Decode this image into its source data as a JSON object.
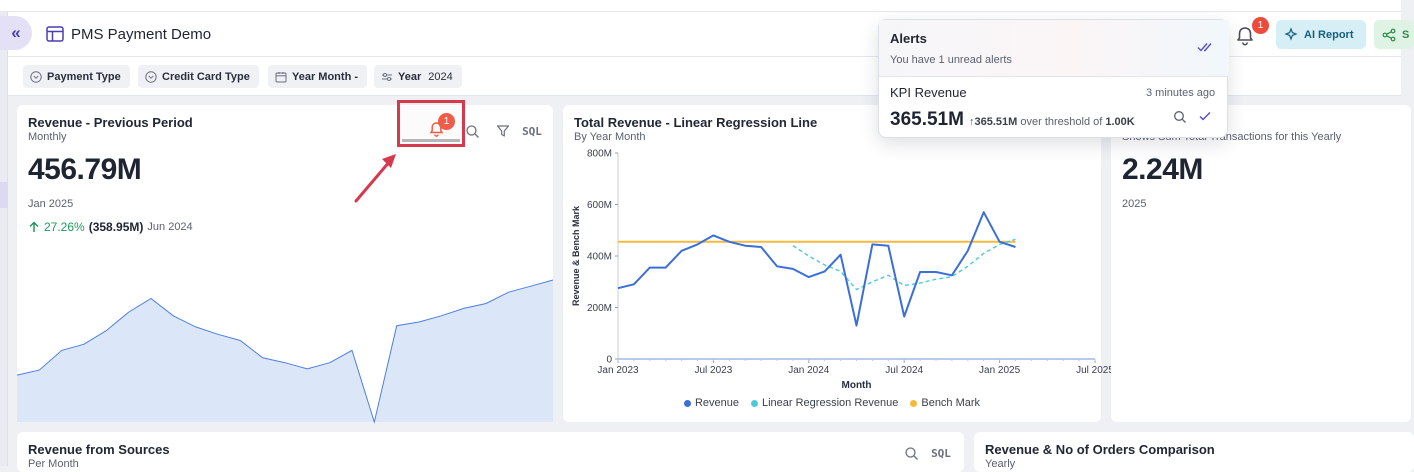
{
  "header": {
    "collapse_icon": "double-chevron-left-icon",
    "title": "PMS Payment Demo",
    "bell_badge": "1",
    "ai_report_label": "AI Report",
    "share_label": "S"
  },
  "filters": [
    {
      "label": "Payment Type",
      "value": ""
    },
    {
      "label": "Credit Card Type",
      "value": ""
    },
    {
      "label": "Year Month -",
      "value": ""
    },
    {
      "label": "Year",
      "value": "2024"
    }
  ],
  "card_revenue": {
    "title": "Revenue - Previous Period",
    "subtitle": "Monthly",
    "value": "456.79M",
    "period": "Jan 2025",
    "delta_pct": "27.26%",
    "delta_abs": "(358.95M)",
    "delta_period": "Jun 2024",
    "alert_badge": "1",
    "sql_label": "SQL",
    "sparkline": [
      0.38,
      0.42,
      0.58,
      0.63,
      0.74,
      0.89,
      1.0,
      0.86,
      0.77,
      0.71,
      0.66,
      0.52,
      0.48,
      0.43,
      0.48,
      0.58,
      0.0,
      0.78,
      0.81,
      0.86,
      0.92,
      0.96,
      1.05,
      1.1,
      1.15
    ]
  },
  "card_total": {
    "title": "Total Revenue - Linear Regression Line",
    "subtitle": "By Year Month"
  },
  "card_sum": {
    "subtitle": "Shows Sum Total Transactions for this Yearly",
    "value": "2.24M",
    "period": "2025"
  },
  "card_sources": {
    "title": "Revenue from Sources",
    "subtitle": "Per Month",
    "sql_label": "SQL"
  },
  "card_orders": {
    "title": "Revenue & No of Orders Comparison",
    "subtitle": "Yearly"
  },
  "alerts": {
    "title": "Alerts",
    "subtitle": "You have 1 unread alerts",
    "kpi_name": "KPI Revenue",
    "kpi_time": "3 minutes ago",
    "kpi_value": "365.51M",
    "kpi_delta_value": "365.51M",
    "kpi_delta_text": "over threshold of",
    "kpi_threshold": "1.00K"
  },
  "colors": {
    "revenue": "#3a6fd8",
    "regression": "#4ccbd6",
    "benchmark": "#f5b93c",
    "accent": "#4a3fb0",
    "alert_red": "#ef4b3b"
  },
  "chart_data": {
    "type": "line",
    "title": "Total Revenue - Linear Regression Line",
    "subtitle": "By Year Month",
    "xlabel": "Month",
    "ylabel": "Revenue & Bench Mark",
    "x_ticks": [
      "Jan 2023",
      "Jul 2023",
      "Jan 2024",
      "Jul 2024",
      "Jan 2025",
      "Jul 2025"
    ],
    "y_ticks": [
      "0",
      "200M",
      "400M",
      "600M",
      "800M"
    ],
    "ylim": [
      0,
      800
    ],
    "x_range": [
      "2023-01",
      "2025-07"
    ],
    "series": [
      {
        "name": "Revenue",
        "x": [
          "2023-01",
          "2023-02",
          "2023-03",
          "2023-04",
          "2023-05",
          "2023-06",
          "2023-07",
          "2023-08",
          "2023-09",
          "2023-10",
          "2023-11",
          "2023-12",
          "2024-01",
          "2024-02",
          "2024-03",
          "2024-04",
          "2024-05",
          "2024-06",
          "2024-07",
          "2024-08",
          "2024-09",
          "2024-10",
          "2024-11",
          "2024-12",
          "2025-01",
          "2025-02"
        ],
        "y": [
          275,
          290,
          355,
          355,
          420,
          445,
          480,
          455,
          440,
          435,
          360,
          350,
          318,
          340,
          405,
          130,
          445,
          440,
          165,
          338,
          338,
          325,
          420,
          570,
          455,
          435
        ]
      },
      {
        "name": "Linear Regression Revenue",
        "x": [
          "2023-12",
          "2024-01",
          "2024-02",
          "2024-03",
          "2024-04",
          "2024-05",
          "2024-06",
          "2024-07",
          "2024-08",
          "2024-09",
          "2024-10",
          "2024-11",
          "2024-12",
          "2025-01",
          "2025-02"
        ],
        "y": [
          440,
          400,
          365,
          340,
          270,
          300,
          325,
          285,
          295,
          310,
          320,
          360,
          410,
          445,
          465
        ]
      },
      {
        "name": "Bench Mark",
        "x": [
          "2023-01",
          "2025-02"
        ],
        "y": [
          455,
          455
        ]
      }
    ],
    "legend": "bottom",
    "grid": false
  }
}
